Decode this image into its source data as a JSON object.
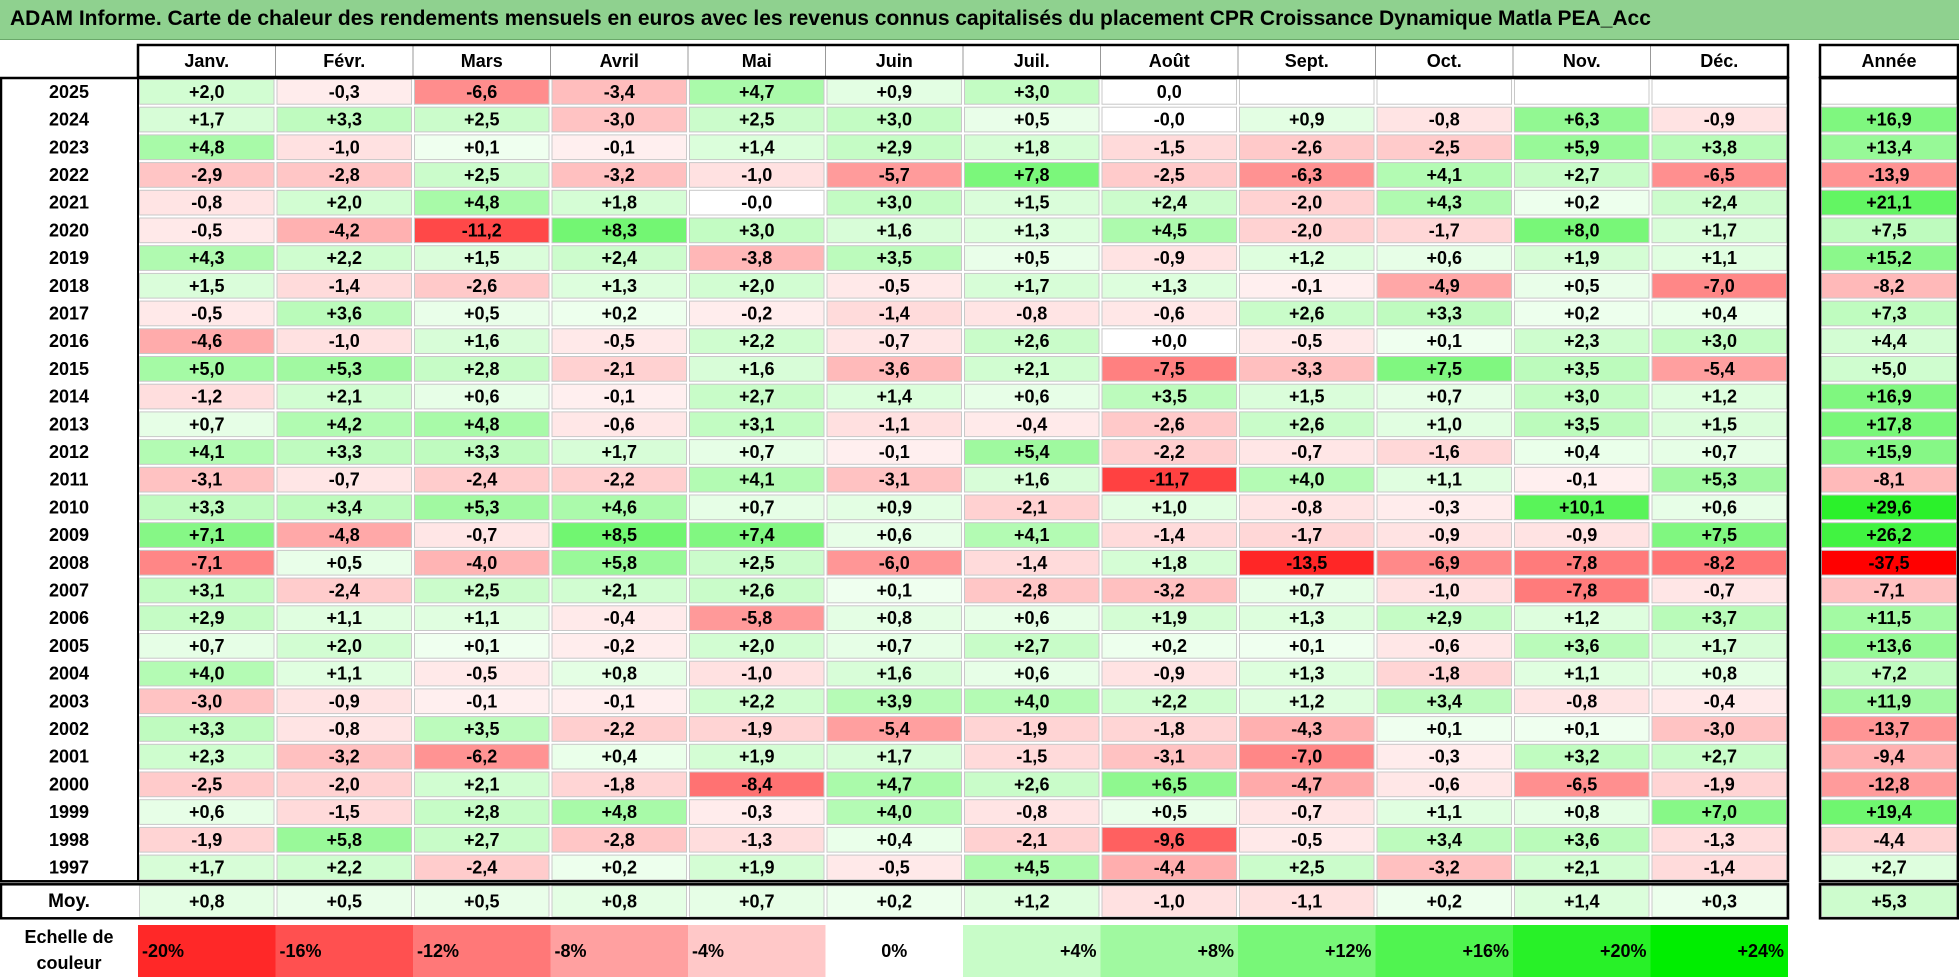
{
  "title": "ADAM Informe. Carte de chaleur des rendements mensuels en euros avec les revenus connus capitalisés du placement CPR Croissance Dynamique Matla PEA_Acc",
  "chart_data": {
    "type": "heatmap",
    "months": [
      "Janv.",
      "Févr.",
      "Mars",
      "Avril",
      "Mai",
      "Juin",
      "Juil.",
      "Août",
      "Sept.",
      "Oct.",
      "Nov.",
      "Déc."
    ],
    "annual_header": "Année",
    "rows": [
      {
        "year": "2025",
        "values": [
          "+2,0",
          "-0,3",
          "-6,6",
          "-3,4",
          "+4,7",
          "+0,9",
          "+3,0",
          "0,0",
          "",
          "",
          "",
          ""
        ],
        "annual": ""
      },
      {
        "year": "2024",
        "values": [
          "+1,7",
          "+3,3",
          "+2,5",
          "-3,0",
          "+2,5",
          "+3,0",
          "+0,5",
          "-0,0",
          "+0,9",
          "-0,8",
          "+6,3",
          "-0,9"
        ],
        "annual": "+16,9"
      },
      {
        "year": "2023",
        "values": [
          "+4,8",
          "-1,0",
          "+0,1",
          "-0,1",
          "+1,4",
          "+2,9",
          "+1,8",
          "-1,5",
          "-2,6",
          "-2,5",
          "+5,9",
          "+3,8"
        ],
        "annual": "+13,4"
      },
      {
        "year": "2022",
        "values": [
          "-2,9",
          "-2,8",
          "+2,5",
          "-3,2",
          "-1,0",
          "-5,7",
          "+7,8",
          "-2,5",
          "-6,3",
          "+4,1",
          "+2,7",
          "-6,5"
        ],
        "annual": "-13,9"
      },
      {
        "year": "2021",
        "values": [
          "-0,8",
          "+2,0",
          "+4,8",
          "+1,8",
          "-0,0",
          "+3,0",
          "+1,5",
          "+2,4",
          "-2,0",
          "+4,3",
          "+0,2",
          "+2,4"
        ],
        "annual": "+21,1"
      },
      {
        "year": "2020",
        "values": [
          "-0,5",
          "-4,2",
          "-11,2",
          "+8,3",
          "+3,0",
          "+1,6",
          "+1,3",
          "+4,5",
          "-2,0",
          "-1,7",
          "+8,0",
          "+1,7"
        ],
        "annual": "+7,5"
      },
      {
        "year": "2019",
        "values": [
          "+4,3",
          "+2,2",
          "+1,5",
          "+2,4",
          "-3,8",
          "+3,5",
          "+0,5",
          "-0,9",
          "+1,2",
          "+0,6",
          "+1,9",
          "+1,1"
        ],
        "annual": "+15,2"
      },
      {
        "year": "2018",
        "values": [
          "+1,5",
          "-1,4",
          "-2,6",
          "+1,3",
          "+2,0",
          "-0,5",
          "+1,7",
          "+1,3",
          "-0,1",
          "-4,9",
          "+0,5",
          "-7,0"
        ],
        "annual": "-8,2"
      },
      {
        "year": "2017",
        "values": [
          "-0,5",
          "+3,6",
          "+0,5",
          "+0,2",
          "-0,2",
          "-1,4",
          "-0,8",
          "-0,6",
          "+2,6",
          "+3,3",
          "+0,2",
          "+0,4"
        ],
        "annual": "+7,3"
      },
      {
        "year": "2016",
        "values": [
          "-4,6",
          "-1,0",
          "+1,6",
          "-0,5",
          "+2,2",
          "-0,7",
          "+2,6",
          "+0,0",
          "-0,5",
          "+0,1",
          "+2,3",
          "+3,0"
        ],
        "annual": "+4,4"
      },
      {
        "year": "2015",
        "values": [
          "+5,0",
          "+5,3",
          "+2,8",
          "-2,1",
          "+1,6",
          "-3,6",
          "+2,1",
          "-7,5",
          "-3,3",
          "+7,5",
          "+3,5",
          "-5,4"
        ],
        "annual": "+5,0"
      },
      {
        "year": "2014",
        "values": [
          "-1,2",
          "+2,1",
          "+0,6",
          "-0,1",
          "+2,7",
          "+1,4",
          "+0,6",
          "+3,5",
          "+1,5",
          "+0,7",
          "+3,0",
          "+1,2"
        ],
        "annual": "+16,9"
      },
      {
        "year": "2013",
        "values": [
          "+0,7",
          "+4,2",
          "+4,8",
          "-0,6",
          "+3,1",
          "-1,1",
          "-0,4",
          "-2,6",
          "+2,6",
          "+1,0",
          "+3,5",
          "+1,5"
        ],
        "annual": "+17,8"
      },
      {
        "year": "2012",
        "values": [
          "+4,1",
          "+3,3",
          "+3,3",
          "+1,7",
          "+0,7",
          "-0,1",
          "+5,4",
          "-2,2",
          "-0,7",
          "-1,6",
          "+0,4",
          "+0,7"
        ],
        "annual": "+15,9"
      },
      {
        "year": "2011",
        "values": [
          "-3,1",
          "-0,7",
          "-2,4",
          "-2,2",
          "+4,1",
          "-3,1",
          "+1,6",
          "-11,7",
          "+4,0",
          "+1,1",
          "-0,1",
          "+5,3"
        ],
        "annual": "-8,1"
      },
      {
        "year": "2010",
        "values": [
          "+3,3",
          "+3,4",
          "+5,3",
          "+4,6",
          "+0,7",
          "+0,9",
          "-2,1",
          "+1,0",
          "-0,8",
          "-0,3",
          "+10,1",
          "+0,6"
        ],
        "annual": "+29,6"
      },
      {
        "year": "2009",
        "values": [
          "+7,1",
          "-4,8",
          "-0,7",
          "+8,5",
          "+7,4",
          "+0,6",
          "+4,1",
          "-1,4",
          "-1,7",
          "-0,9",
          "-0,9",
          "+7,5"
        ],
        "annual": "+26,2"
      },
      {
        "year": "2008",
        "values": [
          "-7,1",
          "+0,5",
          "-4,0",
          "+5,8",
          "+2,5",
          "-6,0",
          "-1,4",
          "+1,8",
          "-13,5",
          "-6,9",
          "-7,8",
          "-8,2"
        ],
        "annual": "-37,5"
      },
      {
        "year": "2007",
        "values": [
          "+3,1",
          "-2,4",
          "+2,5",
          "+2,1",
          "+2,6",
          "+0,1",
          "-2,8",
          "-3,2",
          "+0,7",
          "-1,0",
          "-7,8",
          "-0,7"
        ],
        "annual": "-7,1"
      },
      {
        "year": "2006",
        "values": [
          "+2,9",
          "+1,1",
          "+1,1",
          "-0,4",
          "-5,8",
          "+0,8",
          "+0,6",
          "+1,9",
          "+1,3",
          "+2,9",
          "+1,2",
          "+3,7"
        ],
        "annual": "+11,5"
      },
      {
        "year": "2005",
        "values": [
          "+0,7",
          "+2,0",
          "+0,1",
          "-0,2",
          "+2,0",
          "+0,7",
          "+2,7",
          "+0,2",
          "+0,1",
          "-0,6",
          "+3,6",
          "+1,7"
        ],
        "annual": "+13,6"
      },
      {
        "year": "2004",
        "values": [
          "+4,0",
          "+1,1",
          "-0,5",
          "+0,8",
          "-1,0",
          "+1,6",
          "+0,6",
          "-0,9",
          "+1,3",
          "-1,8",
          "+1,1",
          "+0,8"
        ],
        "annual": "+7,2"
      },
      {
        "year": "2003",
        "values": [
          "-3,0",
          "-0,9",
          "-0,1",
          "-0,1",
          "+2,2",
          "+3,9",
          "+4,0",
          "+2,2",
          "+1,2",
          "+3,4",
          "-0,8",
          "-0,4"
        ],
        "annual": "+11,9"
      },
      {
        "year": "2002",
        "values": [
          "+3,3",
          "-0,8",
          "+3,5",
          "-2,2",
          "-1,9",
          "-5,4",
          "-1,9",
          "-1,8",
          "-4,3",
          "+0,1",
          "+0,1",
          "-3,0"
        ],
        "annual": "-13,7"
      },
      {
        "year": "2001",
        "values": [
          "+2,3",
          "-3,2",
          "-6,2",
          "+0,4",
          "+1,9",
          "+1,7",
          "-1,5",
          "-3,1",
          "-7,0",
          "-0,3",
          "+3,2",
          "+2,7"
        ],
        "annual": "-9,4"
      },
      {
        "year": "2000",
        "values": [
          "-2,5",
          "-2,0",
          "+2,1",
          "-1,8",
          "-8,4",
          "+4,7",
          "+2,6",
          "+6,5",
          "-4,7",
          "-0,6",
          "-6,5",
          "-1,9"
        ],
        "annual": "-12,8"
      },
      {
        "year": "1999",
        "values": [
          "+0,6",
          "-1,5",
          "+2,8",
          "+4,8",
          "-0,3",
          "+4,0",
          "-0,8",
          "+0,5",
          "-0,7",
          "+1,1",
          "+0,8",
          "+7,0"
        ],
        "annual": "+19,4"
      },
      {
        "year": "1998",
        "values": [
          "-1,9",
          "+5,8",
          "+2,7",
          "-2,8",
          "-1,3",
          "+0,4",
          "-2,1",
          "-9,6",
          "-0,5",
          "+3,4",
          "+3,6",
          "-1,3"
        ],
        "annual": "-4,4"
      },
      {
        "year": "1997",
        "values": [
          "+1,7",
          "+2,2",
          "-2,4",
          "+0,2",
          "+1,9",
          "-0,5",
          "+4,5",
          "-4,4",
          "+2,5",
          "-3,2",
          "+2,1",
          "-1,4"
        ],
        "annual": "+2,7"
      }
    ],
    "average": {
      "label": "Moy.",
      "values": [
        "+0,8",
        "+0,5",
        "+0,5",
        "+0,8",
        "+0,7",
        "+0,2",
        "+1,2",
        "-1,0",
        "-1,1",
        "+0,2",
        "+1,4",
        "+0,3"
      ],
      "annual": "+5,3"
    },
    "scale": {
      "label_line1": "Echelle de",
      "label_line2": "couleur",
      "stops": [
        {
          "label": "-20%",
          "value": -20
        },
        {
          "label": "-16%",
          "value": -16
        },
        {
          "label": "-12%",
          "value": -12
        },
        {
          "label": "-8%",
          "value": -8
        },
        {
          "label": "-4%",
          "value": -4
        },
        {
          "label": "0%",
          "value": 0
        },
        {
          "label": "+4%",
          "value": 4
        },
        {
          "label": "+8%",
          "value": 8
        },
        {
          "label": "+12%",
          "value": 12
        },
        {
          "label": "+16%",
          "value": 16
        },
        {
          "label": "+20%",
          "value": 20
        },
        {
          "label": "+24%",
          "value": 24
        }
      ]
    },
    "colors": {
      "negative_max": "#ff0000",
      "neutral": "#ffffff",
      "positive_max": "#00ee00",
      "title_bg": "#8fd18f"
    }
  }
}
